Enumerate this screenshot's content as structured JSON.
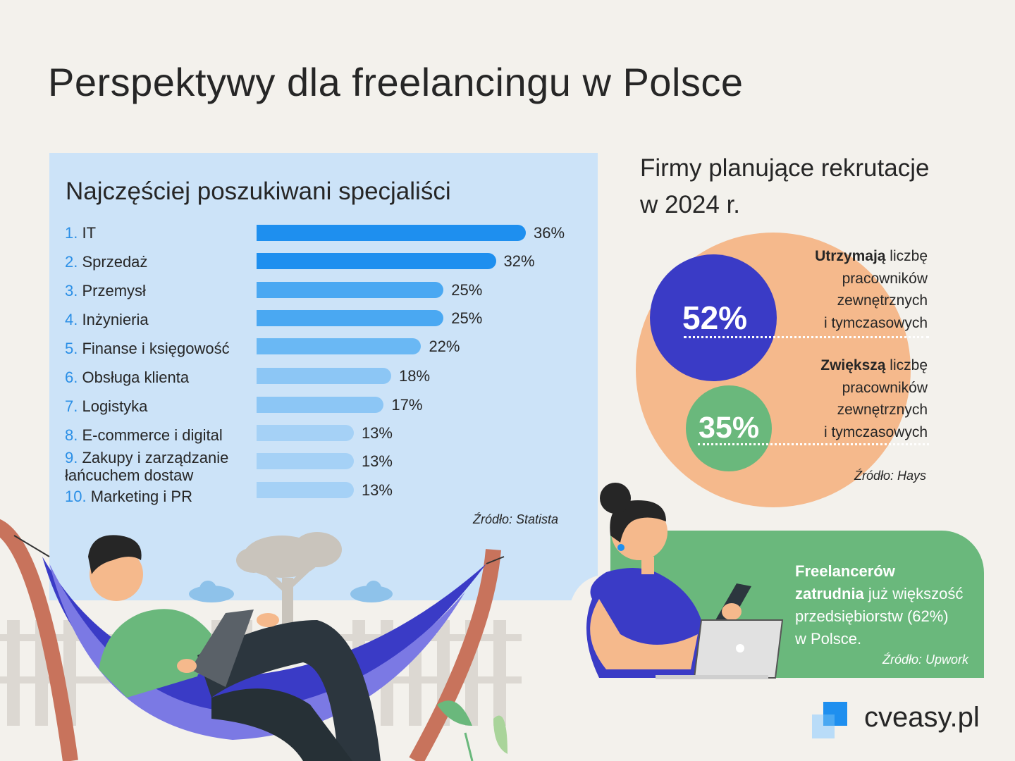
{
  "title": "Perspektywy dla freelancingu w Polsce",
  "chart_data": {
    "type": "bar",
    "orientation": "horizontal",
    "title": "Najczęściej poszukiwani specjaliści",
    "categories": [
      {
        "num": "1.",
        "label": "IT"
      },
      {
        "num": "2.",
        "label": "Sprzedaż"
      },
      {
        "num": "3.",
        "label": "Przemysł"
      },
      {
        "num": "4.",
        "label": "Inżynieria"
      },
      {
        "num": "5.",
        "label": "Finanse i księgowość"
      },
      {
        "num": "6.",
        "label": "Obsługa klienta"
      },
      {
        "num": "7.",
        "label": "Logistyka"
      },
      {
        "num": "8.",
        "label": "E-commerce i digital"
      },
      {
        "num": "9.",
        "label": "Zakupy i zarządzanie\nłańcuchem dostaw"
      },
      {
        "num": "10.",
        "label": "Marketing i PR"
      }
    ],
    "values": [
      36,
      32,
      25,
      25,
      22,
      18,
      17,
      13,
      13,
      13
    ],
    "value_labels": [
      "36%",
      "32%",
      "25%",
      "25%",
      "22%",
      "18%",
      "17%",
      "13%",
      "13%",
      "13%"
    ],
    "unit": "%",
    "colors": [
      "#1e8fef",
      "#1e8fef",
      "#4aa8f2",
      "#4aa8f2",
      "#6ab8f4",
      "#8cc6f5",
      "#8cc6f5",
      "#a5d1f6",
      "#a5d1f6",
      "#a5d1f6"
    ],
    "source": "Źródło: Statista"
  },
  "recruitment": {
    "title_line1": "Firmy planujące rekrutacje",
    "title_line2": "w 2024 r.",
    "keep": {
      "value": 52,
      "label": "52%",
      "bold": "Utrzymają",
      "line1_rest": " liczbę",
      "line2": "pracowników",
      "line3": "zewnętrznych",
      "line4": "i tymczasowych",
      "color": "#3a3bc6"
    },
    "increase": {
      "value": 35,
      "label": "35%",
      "bold": "Zwiększą",
      "line1_rest": " liczbę",
      "line2": "pracowników",
      "line3": "zewnętrznych",
      "line4": "i tymczasowych",
      "color": "#6ab87c"
    },
    "source": "Źródło: Hays"
  },
  "freelancers": {
    "bold_line1": "Freelancerów",
    "bold_line2": "zatrudnia",
    "rest_line2": " już większość",
    "line3": "przedsiębiorstw (62%)",
    "line4": "w Polsce.",
    "source": "Źródło: Upwork"
  },
  "brand": {
    "name": "cveasy.pl",
    "icon": "cveasy-logo-icon"
  }
}
